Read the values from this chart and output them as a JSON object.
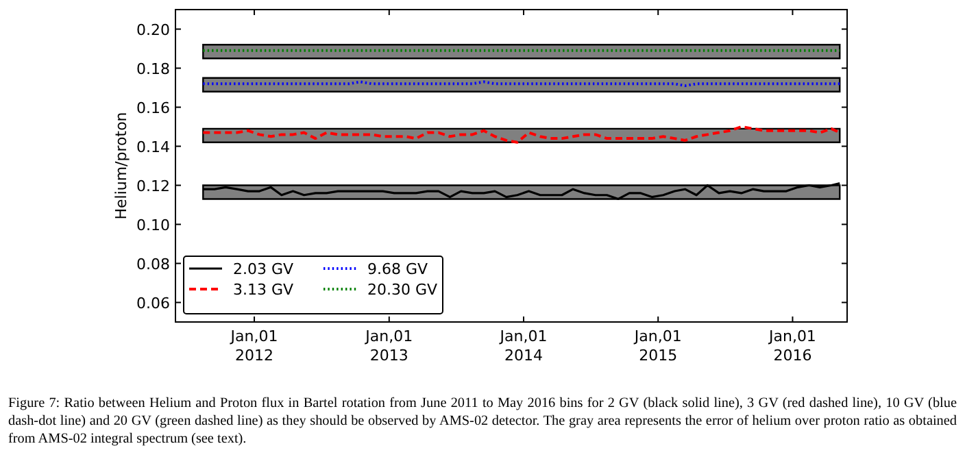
{
  "chart_data": {
    "type": "line",
    "ylabel": "Helium/proton",
    "ylim": [
      0.05,
      0.21
    ],
    "yticks": [
      {
        "value": 0.06,
        "label": "0.06"
      },
      {
        "value": 0.08,
        "label": "0.08"
      },
      {
        "value": 0.1,
        "label": "0.10"
      },
      {
        "value": 0.12,
        "label": "0.12"
      },
      {
        "value": 0.14,
        "label": "0.14"
      },
      {
        "value": 0.16,
        "label": "0.16"
      },
      {
        "value": 0.18,
        "label": "0.18"
      },
      {
        "value": 0.2,
        "label": "0.20"
      }
    ],
    "xlim": [
      "2011-06-01",
      "2016-05-28"
    ],
    "xticks": [
      {
        "value": "2012-01-01",
        "label": "Jan,01\n2012"
      },
      {
        "value": "2013-01-01",
        "label": "Jan,01\n2013"
      },
      {
        "value": "2014-01-01",
        "label": "Jan,01\n2014"
      },
      {
        "value": "2015-01-01",
        "label": "Jan,01\n2015"
      },
      {
        "value": "2016-01-01",
        "label": "Jan,01\n2016"
      }
    ],
    "x": [
      "2011-08-15",
      "2011-09-15",
      "2011-10-15",
      "2011-11-15",
      "2011-12-15",
      "2012-01-15",
      "2012-02-15",
      "2012-03-15",
      "2012-04-15",
      "2012-05-15",
      "2012-06-15",
      "2012-07-15",
      "2012-08-15",
      "2012-09-15",
      "2012-10-15",
      "2012-11-15",
      "2012-12-15",
      "2013-01-15",
      "2013-02-15",
      "2013-03-15",
      "2013-04-15",
      "2013-05-15",
      "2013-06-15",
      "2013-07-15",
      "2013-08-15",
      "2013-09-15",
      "2013-10-15",
      "2013-11-15",
      "2013-12-15",
      "2014-01-15",
      "2014-02-15",
      "2014-03-15",
      "2014-04-15",
      "2014-05-15",
      "2014-06-15",
      "2014-07-15",
      "2014-08-15",
      "2014-09-15",
      "2014-10-15",
      "2014-11-15",
      "2014-12-15",
      "2015-01-15",
      "2015-02-15",
      "2015-03-15",
      "2015-04-15",
      "2015-05-15",
      "2015-06-15",
      "2015-07-15",
      "2015-08-15",
      "2015-09-15",
      "2015-10-15",
      "2015-11-15",
      "2015-12-15",
      "2016-01-15",
      "2016-02-15",
      "2016-03-15",
      "2016-04-15",
      "2016-05-08"
    ],
    "series": [
      {
        "name": "2.03 GV",
        "color": "#000000",
        "line_style": "solid",
        "values": [
          0.118,
          0.118,
          0.119,
          0.118,
          0.117,
          0.117,
          0.119,
          0.115,
          0.117,
          0.115,
          0.116,
          0.116,
          0.117,
          0.117,
          0.117,
          0.117,
          0.117,
          0.116,
          0.116,
          0.116,
          0.117,
          0.117,
          0.114,
          0.117,
          0.116,
          0.116,
          0.117,
          0.114,
          0.115,
          0.117,
          0.115,
          0.115,
          0.115,
          0.118,
          0.116,
          0.115,
          0.115,
          0.113,
          0.116,
          0.116,
          0.114,
          0.115,
          0.117,
          0.118,
          0.115,
          0.12,
          0.116,
          0.117,
          0.116,
          0.118,
          0.117,
          0.117,
          0.117,
          0.119,
          0.12,
          0.119,
          0.12,
          0.121
        ],
        "lower": [
          0.113,
          0.113,
          0.113,
          0.113,
          0.113,
          0.113,
          0.113,
          0.113,
          0.113,
          0.113,
          0.113,
          0.113,
          0.113,
          0.113,
          0.113,
          0.113,
          0.113,
          0.113,
          0.113,
          0.113,
          0.113,
          0.113,
          0.113,
          0.113,
          0.113,
          0.113,
          0.113,
          0.113,
          0.113,
          0.113,
          0.113,
          0.113,
          0.113,
          0.113,
          0.113,
          0.113,
          0.113,
          0.113,
          0.113,
          0.113,
          0.113,
          0.113,
          0.113,
          0.113,
          0.113,
          0.113,
          0.113,
          0.113,
          0.113,
          0.113,
          0.113,
          0.113,
          0.113,
          0.113,
          0.113,
          0.113,
          0.113,
          0.113
        ],
        "upper": [
          0.12,
          0.12,
          0.12,
          0.12,
          0.12,
          0.12,
          0.12,
          0.12,
          0.12,
          0.12,
          0.12,
          0.12,
          0.12,
          0.12,
          0.12,
          0.12,
          0.12,
          0.12,
          0.12,
          0.12,
          0.12,
          0.12,
          0.12,
          0.12,
          0.12,
          0.12,
          0.12,
          0.12,
          0.12,
          0.12,
          0.12,
          0.12,
          0.12,
          0.12,
          0.12,
          0.12,
          0.12,
          0.12,
          0.12,
          0.12,
          0.12,
          0.12,
          0.12,
          0.12,
          0.12,
          0.12,
          0.12,
          0.12,
          0.12,
          0.12,
          0.12,
          0.12,
          0.12,
          0.12,
          0.12,
          0.12,
          0.12,
          0.12
        ]
      },
      {
        "name": "3.13 GV",
        "color": "#ff0000",
        "line_style": "dashed",
        "values": [
          0.147,
          0.147,
          0.147,
          0.147,
          0.148,
          0.146,
          0.145,
          0.146,
          0.146,
          0.147,
          0.144,
          0.147,
          0.146,
          0.146,
          0.146,
          0.146,
          0.145,
          0.145,
          0.145,
          0.144,
          0.147,
          0.147,
          0.145,
          0.146,
          0.146,
          0.148,
          0.145,
          0.143,
          0.142,
          0.147,
          0.145,
          0.144,
          0.144,
          0.145,
          0.146,
          0.146,
          0.144,
          0.144,
          0.144,
          0.144,
          0.144,
          0.145,
          0.144,
          0.143,
          0.145,
          0.146,
          0.147,
          0.148,
          0.15,
          0.149,
          0.148,
          0.148,
          0.148,
          0.148,
          0.148,
          0.147,
          0.149,
          0.147
        ],
        "lower": [
          0.142,
          0.142,
          0.142,
          0.142,
          0.142,
          0.142,
          0.142,
          0.142,
          0.142,
          0.142,
          0.142,
          0.142,
          0.142,
          0.142,
          0.142,
          0.142,
          0.142,
          0.142,
          0.142,
          0.142,
          0.142,
          0.142,
          0.142,
          0.142,
          0.142,
          0.142,
          0.142,
          0.142,
          0.142,
          0.142,
          0.142,
          0.142,
          0.142,
          0.142,
          0.142,
          0.142,
          0.142,
          0.142,
          0.142,
          0.142,
          0.142,
          0.142,
          0.142,
          0.142,
          0.142,
          0.142,
          0.142,
          0.142,
          0.142,
          0.142,
          0.142,
          0.142,
          0.142,
          0.142,
          0.142,
          0.142,
          0.142,
          0.142
        ],
        "upper": [
          0.149,
          0.149,
          0.149,
          0.149,
          0.149,
          0.149,
          0.149,
          0.149,
          0.149,
          0.149,
          0.149,
          0.149,
          0.149,
          0.149,
          0.149,
          0.149,
          0.149,
          0.149,
          0.149,
          0.149,
          0.149,
          0.149,
          0.149,
          0.149,
          0.149,
          0.149,
          0.149,
          0.149,
          0.149,
          0.149,
          0.149,
          0.149,
          0.149,
          0.149,
          0.149,
          0.149,
          0.149,
          0.149,
          0.149,
          0.149,
          0.149,
          0.149,
          0.149,
          0.149,
          0.149,
          0.149,
          0.149,
          0.149,
          0.149,
          0.149,
          0.149,
          0.149,
          0.149,
          0.149,
          0.149,
          0.149,
          0.149,
          0.149
        ]
      },
      {
        "name": "9.68 GV",
        "color": "#0000ff",
        "line_style": "dotted",
        "values": [
          0.172,
          0.172,
          0.172,
          0.172,
          0.172,
          0.172,
          0.172,
          0.172,
          0.172,
          0.172,
          0.172,
          0.172,
          0.172,
          0.172,
          0.173,
          0.172,
          0.172,
          0.172,
          0.172,
          0.172,
          0.172,
          0.172,
          0.172,
          0.172,
          0.172,
          0.173,
          0.172,
          0.172,
          0.172,
          0.172,
          0.172,
          0.172,
          0.172,
          0.172,
          0.172,
          0.172,
          0.172,
          0.172,
          0.172,
          0.172,
          0.172,
          0.172,
          0.172,
          0.171,
          0.172,
          0.172,
          0.172,
          0.172,
          0.172,
          0.172,
          0.172,
          0.172,
          0.172,
          0.172,
          0.172,
          0.172,
          0.172,
          0.172
        ],
        "lower": [
          0.168,
          0.168,
          0.168,
          0.168,
          0.168,
          0.168,
          0.168,
          0.168,
          0.168,
          0.168,
          0.168,
          0.168,
          0.168,
          0.168,
          0.168,
          0.168,
          0.168,
          0.168,
          0.168,
          0.168,
          0.168,
          0.168,
          0.168,
          0.168,
          0.168,
          0.168,
          0.168,
          0.168,
          0.168,
          0.168,
          0.168,
          0.168,
          0.168,
          0.168,
          0.168,
          0.168,
          0.168,
          0.168,
          0.168,
          0.168,
          0.168,
          0.168,
          0.168,
          0.168,
          0.168,
          0.168,
          0.168,
          0.168,
          0.168,
          0.168,
          0.168,
          0.168,
          0.168,
          0.168,
          0.168,
          0.168,
          0.168,
          0.168
        ],
        "upper": [
          0.175,
          0.175,
          0.175,
          0.175,
          0.175,
          0.175,
          0.175,
          0.175,
          0.175,
          0.175,
          0.175,
          0.175,
          0.175,
          0.175,
          0.175,
          0.175,
          0.175,
          0.175,
          0.175,
          0.175,
          0.175,
          0.175,
          0.175,
          0.175,
          0.175,
          0.175,
          0.175,
          0.175,
          0.175,
          0.175,
          0.175,
          0.175,
          0.175,
          0.175,
          0.175,
          0.175,
          0.175,
          0.175,
          0.175,
          0.175,
          0.175,
          0.175,
          0.175,
          0.175,
          0.175,
          0.175,
          0.175,
          0.175,
          0.175,
          0.175,
          0.175,
          0.175,
          0.175,
          0.175,
          0.175,
          0.175,
          0.175,
          0.175
        ]
      },
      {
        "name": "20.30 GV",
        "color": "#008000",
        "line_style": "dotted",
        "values": [
          0.189,
          0.189,
          0.189,
          0.189,
          0.189,
          0.189,
          0.189,
          0.189,
          0.189,
          0.189,
          0.189,
          0.189,
          0.189,
          0.189,
          0.189,
          0.189,
          0.189,
          0.189,
          0.189,
          0.189,
          0.189,
          0.189,
          0.189,
          0.189,
          0.189,
          0.189,
          0.189,
          0.189,
          0.189,
          0.189,
          0.189,
          0.189,
          0.189,
          0.189,
          0.189,
          0.189,
          0.189,
          0.189,
          0.189,
          0.189,
          0.189,
          0.189,
          0.189,
          0.189,
          0.189,
          0.189,
          0.189,
          0.189,
          0.189,
          0.189,
          0.189,
          0.189,
          0.189,
          0.189,
          0.189,
          0.189,
          0.189,
          0.189
        ],
        "lower": [
          0.185,
          0.185,
          0.185,
          0.185,
          0.185,
          0.185,
          0.185,
          0.185,
          0.185,
          0.185,
          0.185,
          0.185,
          0.185,
          0.185,
          0.185,
          0.185,
          0.185,
          0.185,
          0.185,
          0.185,
          0.185,
          0.185,
          0.185,
          0.185,
          0.185,
          0.185,
          0.185,
          0.185,
          0.185,
          0.185,
          0.185,
          0.185,
          0.185,
          0.185,
          0.185,
          0.185,
          0.185,
          0.185,
          0.185,
          0.185,
          0.185,
          0.185,
          0.185,
          0.185,
          0.185,
          0.185,
          0.185,
          0.185,
          0.185,
          0.185,
          0.185,
          0.185,
          0.185,
          0.185,
          0.185,
          0.185,
          0.185,
          0.185
        ],
        "upper": [
          0.192,
          0.192,
          0.192,
          0.192,
          0.192,
          0.192,
          0.192,
          0.192,
          0.192,
          0.192,
          0.192,
          0.192,
          0.192,
          0.192,
          0.192,
          0.192,
          0.192,
          0.192,
          0.192,
          0.192,
          0.192,
          0.192,
          0.192,
          0.192,
          0.192,
          0.192,
          0.192,
          0.192,
          0.192,
          0.192,
          0.192,
          0.192,
          0.192,
          0.192,
          0.192,
          0.192,
          0.192,
          0.192,
          0.192,
          0.192,
          0.192,
          0.192,
          0.192,
          0.192,
          0.192,
          0.192,
          0.192,
          0.192,
          0.192,
          0.192,
          0.192,
          0.192,
          0.192,
          0.192,
          0.192,
          0.192,
          0.192,
          0.192
        ]
      }
    ],
    "legend": "bottom left",
    "annotations": [
      "Figure 7: Ratio between Helium and Proton flux in Bartel rotation from June 2011 to May 2016 bins for 2 GV (black solid line), 3 GV (red dashed line), 10 GV (blue dash-dot line) and 20 GV (green dashed line) as they should be observed by AMS-02 detector.  The gray area represents the error of helium over proton ratio as obtained from AMS-02 integral spectrum (see text)."
    ]
  }
}
